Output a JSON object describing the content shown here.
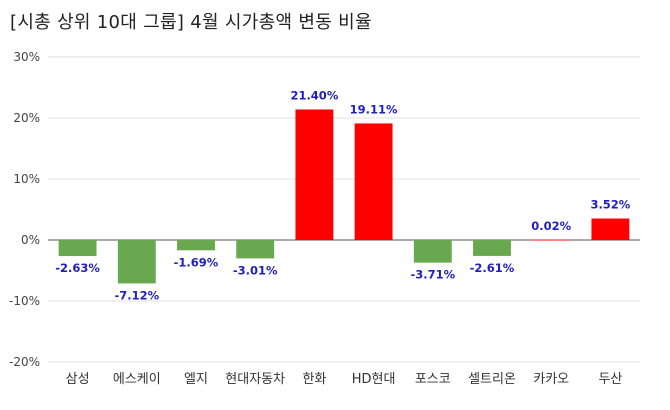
{
  "chart_data": {
    "type": "bar",
    "title": "[시총 상위 10대 그룹]  4월 시가총액 변동 비율",
    "categories": [
      "삼성",
      "에스케이",
      "엘지",
      "현대자동차",
      "한화",
      "HD현대",
      "포스코",
      "셀트리온",
      "카카오",
      "두산"
    ],
    "values": [
      -2.63,
      -7.12,
      -1.69,
      -3.01,
      21.4,
      19.11,
      -3.71,
      -2.61,
      0.02,
      3.52
    ],
    "data_labels": [
      "-2.63%",
      "-7.12%",
      "-1.69%",
      "-3.01%",
      "21.40%",
      "19.11%",
      "-3.71%",
      "-2.61%",
      "0.02%",
      "3.52%"
    ],
    "ylim": [
      -20,
      30
    ],
    "yticks": [
      30,
      20,
      10,
      0,
      -10,
      -20
    ],
    "ytick_labels": [
      "30%",
      "20%",
      "10%",
      "0%",
      "-10%",
      "-20%"
    ],
    "xlabel": "",
    "ylabel": "",
    "grid": true,
    "colors": {
      "positive": "#ff0000",
      "negative": "#6aa84f",
      "label": "#1f1fbf",
      "grid": "#e0e0e0",
      "axis": "#555555"
    }
  }
}
